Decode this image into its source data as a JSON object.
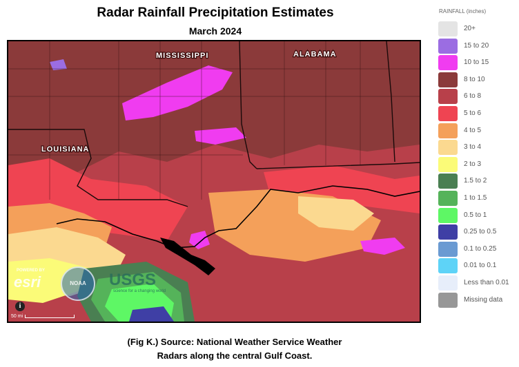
{
  "header": {
    "title": "Radar Rainfall Precipitation Estimates",
    "subtitle": "March 2024"
  },
  "map": {
    "state_labels": [
      "MISSISSIPPI",
      "ALABAMA",
      "LOUISIANA"
    ],
    "info_icon": "info-icon",
    "scale_label": "50 mi",
    "logos": {
      "esri_powered": "POWERED BY",
      "esri": "esri",
      "noaa": "NOAA",
      "usgs": "USGS",
      "usgs_tagline": "science for a changing world"
    }
  },
  "legend": {
    "title": "RAINFALL (inches)",
    "items": [
      {
        "label": "20+",
        "color": "#e4e4e4"
      },
      {
        "label": "15 to 20",
        "color": "#9b6de2"
      },
      {
        "label": "10 to 15",
        "color": "#f03cf0"
      },
      {
        "label": "8 to 10",
        "color": "#8b3a3a"
      },
      {
        "label": "6 to 8",
        "color": "#b8404a"
      },
      {
        "label": "5 to 6",
        "color": "#ef4452"
      },
      {
        "label": "4 to 5",
        "color": "#f4a05a"
      },
      {
        "label": "3 to 4",
        "color": "#fbd990"
      },
      {
        "label": "2 to 3",
        "color": "#fbfb78"
      },
      {
        "label": "1.5 to 2",
        "color": "#4a7f52"
      },
      {
        "label": "1 to 1.5",
        "color": "#55b35a"
      },
      {
        "label": "0.5 to 1",
        "color": "#5ef765"
      },
      {
        "label": "0.25 to 0.5",
        "color": "#3f3fa5"
      },
      {
        "label": "0.1 to 0.25",
        "color": "#6a9ad2"
      },
      {
        "label": "0.01 to 0.1",
        "color": "#5ed3f7"
      },
      {
        "label": "Less than 0.01",
        "color": "#e7eefa"
      },
      {
        "label": "Missing data",
        "color": "#979797"
      }
    ]
  },
  "caption": {
    "line1": "(Fig K.) Source: National Weather Service Weather",
    "line2": "Radars along the central Gulf Coast."
  }
}
